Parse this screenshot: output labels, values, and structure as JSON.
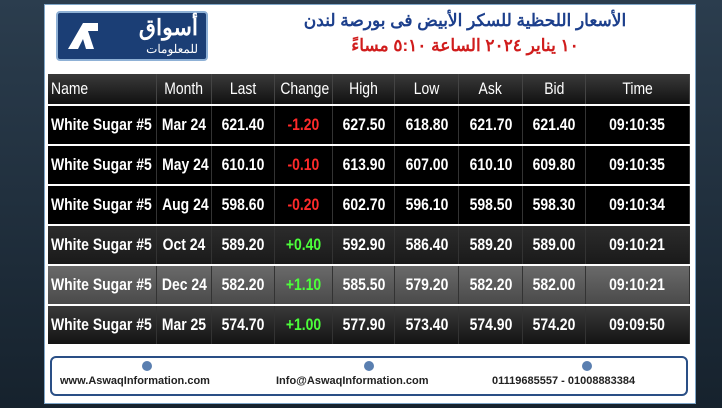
{
  "header": {
    "logo_text": "أسواق",
    "logo_subtext": "للمعلومات",
    "title_line1": "الأسعار اللحظية للسكر الأبيض فى بورصة لندن",
    "title_line2": "١٠ يناير ٢٠٢٤ الساعة ٥:١٠ مساءً"
  },
  "table": {
    "columns": [
      "Name",
      "Month",
      "Last",
      "Change",
      "High",
      "Low",
      "Ask",
      "Bid",
      "Time"
    ],
    "rows": [
      [
        "White Sugar #5",
        "Mar 24",
        "621.40",
        "-1.20",
        "627.50",
        "618.80",
        "621.70",
        "621.40",
        "09:10:35"
      ],
      [
        "White Sugar #5",
        "May 24",
        "610.10",
        "-0.10",
        "613.90",
        "607.00",
        "610.10",
        "609.80",
        "09:10:35"
      ],
      [
        "White Sugar #5",
        "Aug 24",
        "598.60",
        "-0.20",
        "602.70",
        "596.10",
        "598.50",
        "598.30",
        "09:10:34"
      ],
      [
        "White Sugar #5",
        "Oct 24",
        "589.20",
        "+0.40",
        "592.90",
        "586.40",
        "589.20",
        "589.00",
        "09:10:21"
      ],
      [
        "White Sugar #5",
        "Dec 24",
        "582.20",
        "+1.10",
        "585.50",
        "579.20",
        "582.20",
        "582.00",
        "09:10:21"
      ],
      [
        "White Sugar #5",
        "Mar 25",
        "574.70",
        "+1.00",
        "577.90",
        "573.40",
        "574.90",
        "574.20",
        "09:09:50"
      ]
    ]
  },
  "footer": {
    "website": "www.AswaqInformation.com",
    "email": "Info@AswaqInformation.com",
    "phones": "01119685557 - 01008883384"
  }
}
